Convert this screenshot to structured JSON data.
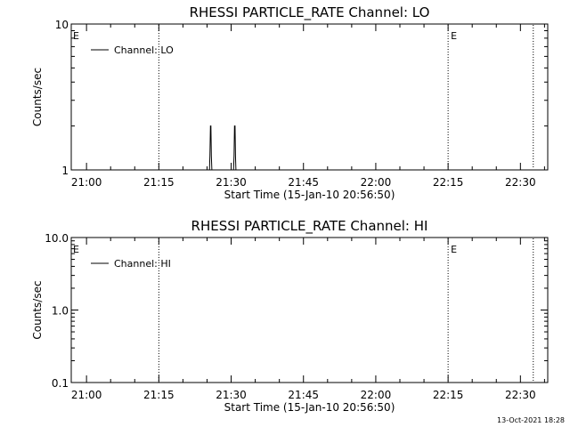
{
  "chart_data": [
    {
      "type": "line",
      "title": "RHESSI PARTICLE_RATE Channel: LO",
      "xlabel": "Start Time (15-Jan-10 20:56:50)",
      "ylabel": "Counts/sec",
      "yscale": "log",
      "xlim": [
        "20:56:50",
        "22:35:40"
      ],
      "ylim": [
        1,
        10
      ],
      "x_ticks": [
        "21:00",
        "21:15",
        "21:30",
        "21:45",
        "22:00",
        "22:15",
        "22:30"
      ],
      "y_ticks": [
        "1",
        "10"
      ],
      "legend": {
        "placement": "top-left",
        "entries": [
          "Channel: LO"
        ]
      },
      "grid": false,
      "event_lines": [
        {
          "time": "21:15:00",
          "label": ""
        },
        {
          "time": "22:15:00",
          "label": "E"
        },
        {
          "time": "22:32:40",
          "label": ""
        }
      ],
      "edge_marker": "E",
      "series": [
        {
          "name": "Channel: LO",
          "x": [
            "21:25:30",
            "21:25:36",
            "21:25:42",
            "21:25:48",
            "21:25:54",
            "21:26:00",
            "21:30:30",
            "21:30:36",
            "21:30:42",
            "21:30:48",
            "21:30:54",
            "21:31:00"
          ],
          "y": [
            1,
            1.25,
            2,
            2,
            1.25,
            1,
            1,
            1.25,
            2,
            2,
            1.25,
            1
          ]
        }
      ]
    },
    {
      "type": "line",
      "title": "RHESSI PARTICLE_RATE Channel: HI",
      "xlabel": "Start Time (15-Jan-10 20:56:50)",
      "ylabel": "Counts/sec",
      "yscale": "log",
      "xlim": [
        "20:56:50",
        "22:35:40"
      ],
      "ylim": [
        0.1,
        10
      ],
      "x_ticks": [
        "21:00",
        "21:15",
        "21:30",
        "21:45",
        "22:00",
        "22:15",
        "22:30"
      ],
      "y_ticks": [
        "0.1",
        "1.0",
        "10.0"
      ],
      "legend": {
        "placement": "top-left",
        "entries": [
          "Channel: HI"
        ]
      },
      "grid": false,
      "event_lines": [
        {
          "time": "21:15:00",
          "label": ""
        },
        {
          "time": "22:15:00",
          "label": "E"
        },
        {
          "time": "22:32:40",
          "label": ""
        }
      ],
      "edge_marker": "E",
      "series": [
        {
          "name": "Channel: HI",
          "x": [],
          "y": []
        }
      ]
    }
  ],
  "footer": {
    "timestamp": "13-Oct-2021 18:28"
  }
}
